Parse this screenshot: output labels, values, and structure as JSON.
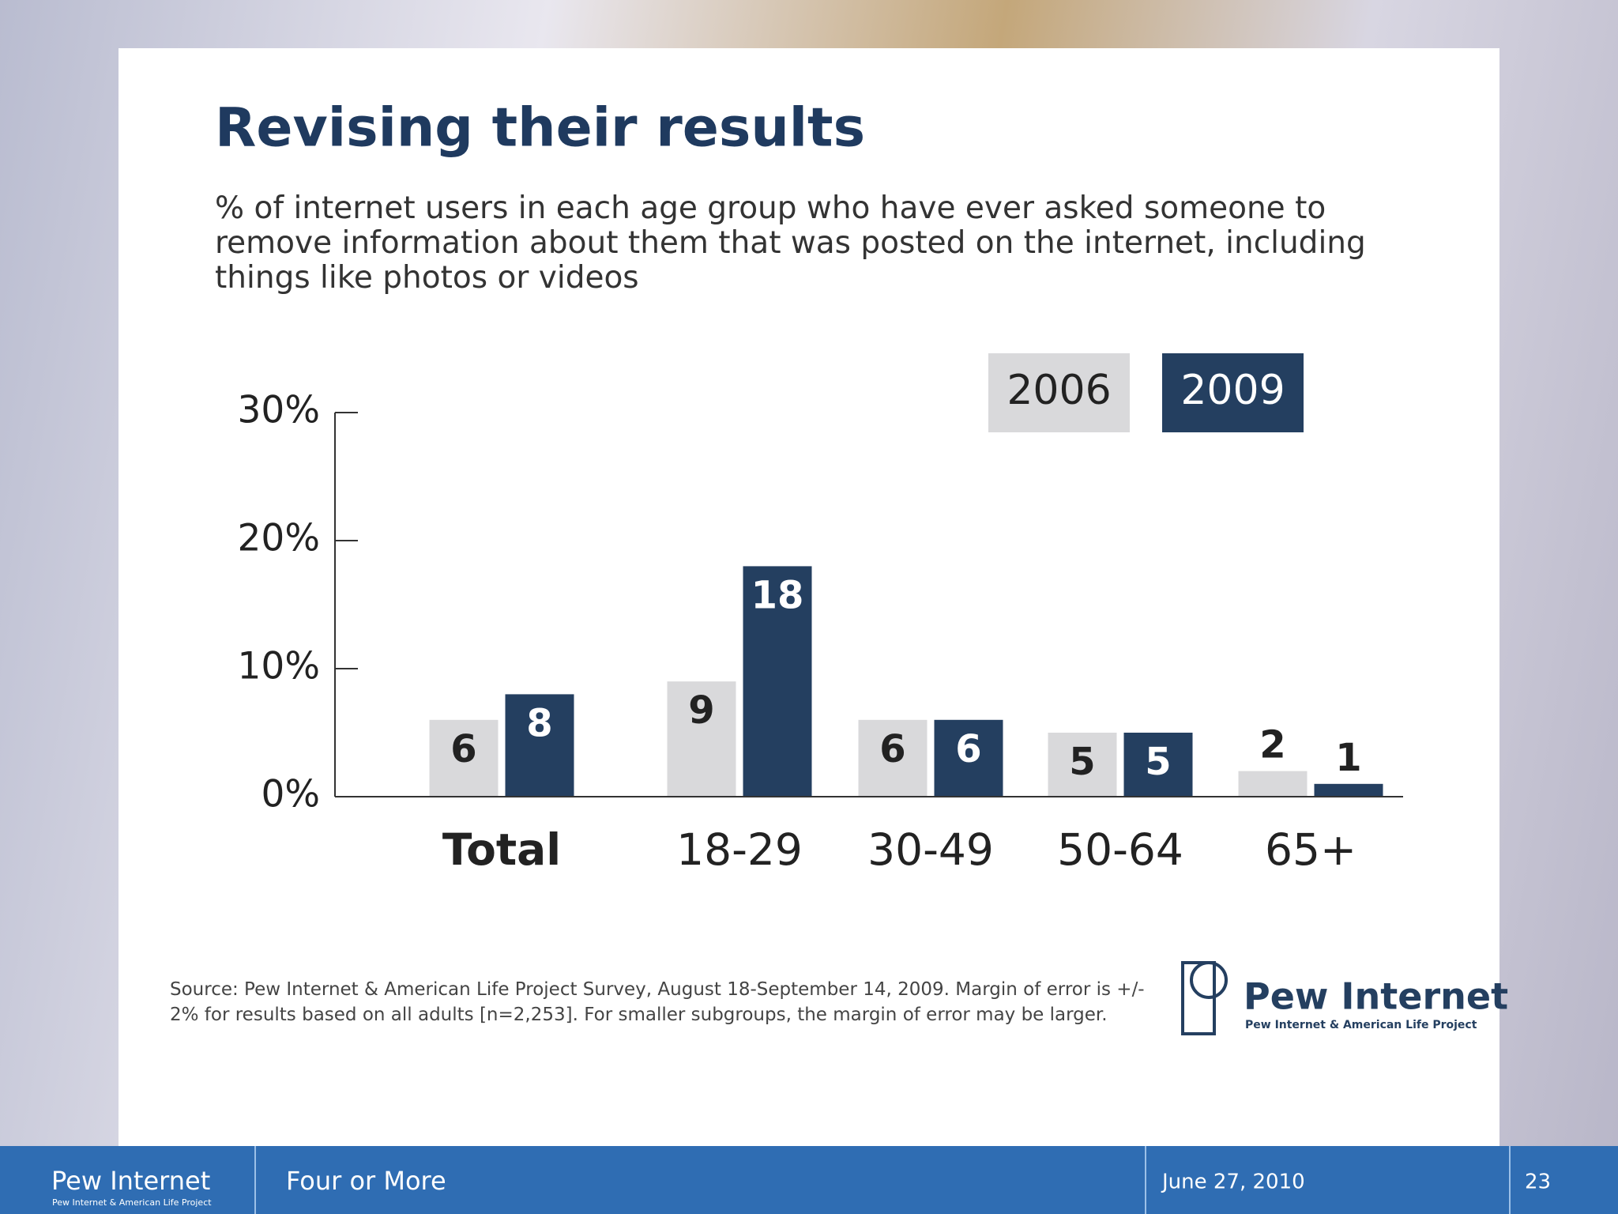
{
  "chart_data": {
    "type": "bar",
    "title": "Revising their results",
    "subtitle": "% of internet users in each age group who have ever asked someone to remove information about them that was posted on the internet, including things like photos or videos",
    "categories": [
      "Total",
      "18-29",
      "30-49",
      "50-64",
      "65+"
    ],
    "series": [
      {
        "name": "2006",
        "color": "#d9d9db",
        "values": [
          6,
          9,
          6,
          5,
          2
        ]
      },
      {
        "name": "2009",
        "color": "#243f60",
        "values": [
          8,
          18,
          6,
          5,
          1
        ]
      }
    ],
    "ylim": [
      0,
      30
    ],
    "yticks": [
      {
        "value": 0,
        "label": "0%"
      },
      {
        "value": 10,
        "label": "10%"
      },
      {
        "value": 20,
        "label": "20%"
      },
      {
        "value": 30,
        "label": "30%"
      }
    ],
    "grid": false,
    "legend": "top-right",
    "source": "Source: Pew Internet & American Life Project Survey, August 18-September 14, 2009. Margin of error is +/- 2% for results based on all adults [n=2,253]. For smaller subgroups, the margin of error may be larger."
  },
  "logo": {
    "name": "Pew Internet",
    "subtitle": "Pew Internet & American Life Project"
  },
  "footer": {
    "logo": "Pew Internet",
    "logo_subtitle": "Pew Internet & American Life Project",
    "section": "Four or More",
    "date": "June 27, 2010",
    "page": "23"
  }
}
